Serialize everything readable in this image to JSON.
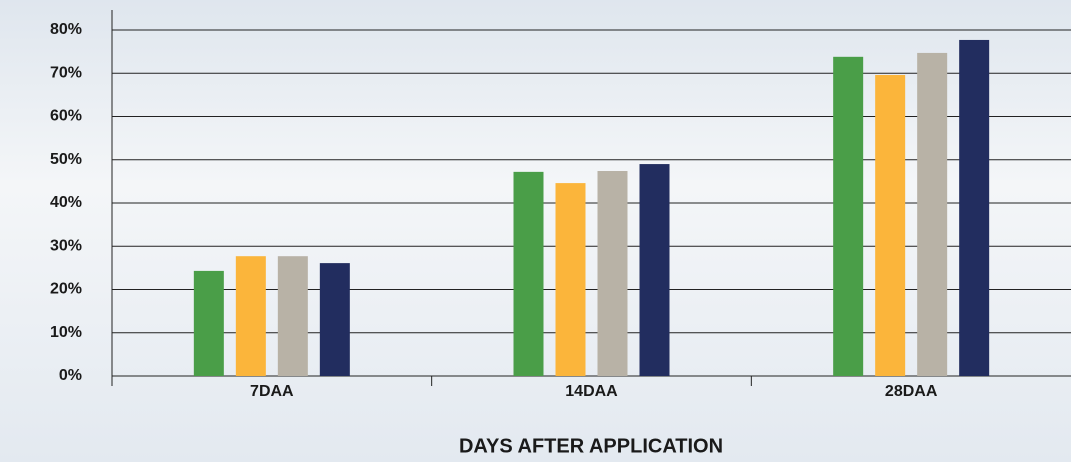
{
  "chart_data": {
    "type": "bar",
    "x_label": "DAYS AFTER APPLICATION",
    "categories": [
      "7DAA",
      "14DAA",
      "28DAA"
    ],
    "series": [
      {
        "color": "#4a9e48",
        "values": [
          24.3,
          47.2,
          73.8
        ]
      },
      {
        "color": "#fbb53b",
        "values": [
          27.7,
          44.6,
          69.6
        ]
      },
      {
        "color": "#b8b2a6",
        "values": [
          27.7,
          47.4,
          74.7
        ]
      },
      {
        "color": "#222d5f",
        "values": [
          26.1,
          49.0,
          77.7
        ]
      }
    ],
    "ylim": [
      0,
      80
    ],
    "yticks": [
      {
        "value": 0,
        "label": "0%"
      },
      {
        "value": 10,
        "label": "10%"
      },
      {
        "value": 20,
        "label": "20%"
      },
      {
        "value": 30,
        "label": "30%"
      },
      {
        "value": 40,
        "label": "40%"
      },
      {
        "value": 50,
        "label": "50%"
      },
      {
        "value": 60,
        "label": "60%"
      },
      {
        "value": 70,
        "label": "70%"
      },
      {
        "value": 80,
        "label": "80%"
      }
    ],
    "grid": true
  }
}
